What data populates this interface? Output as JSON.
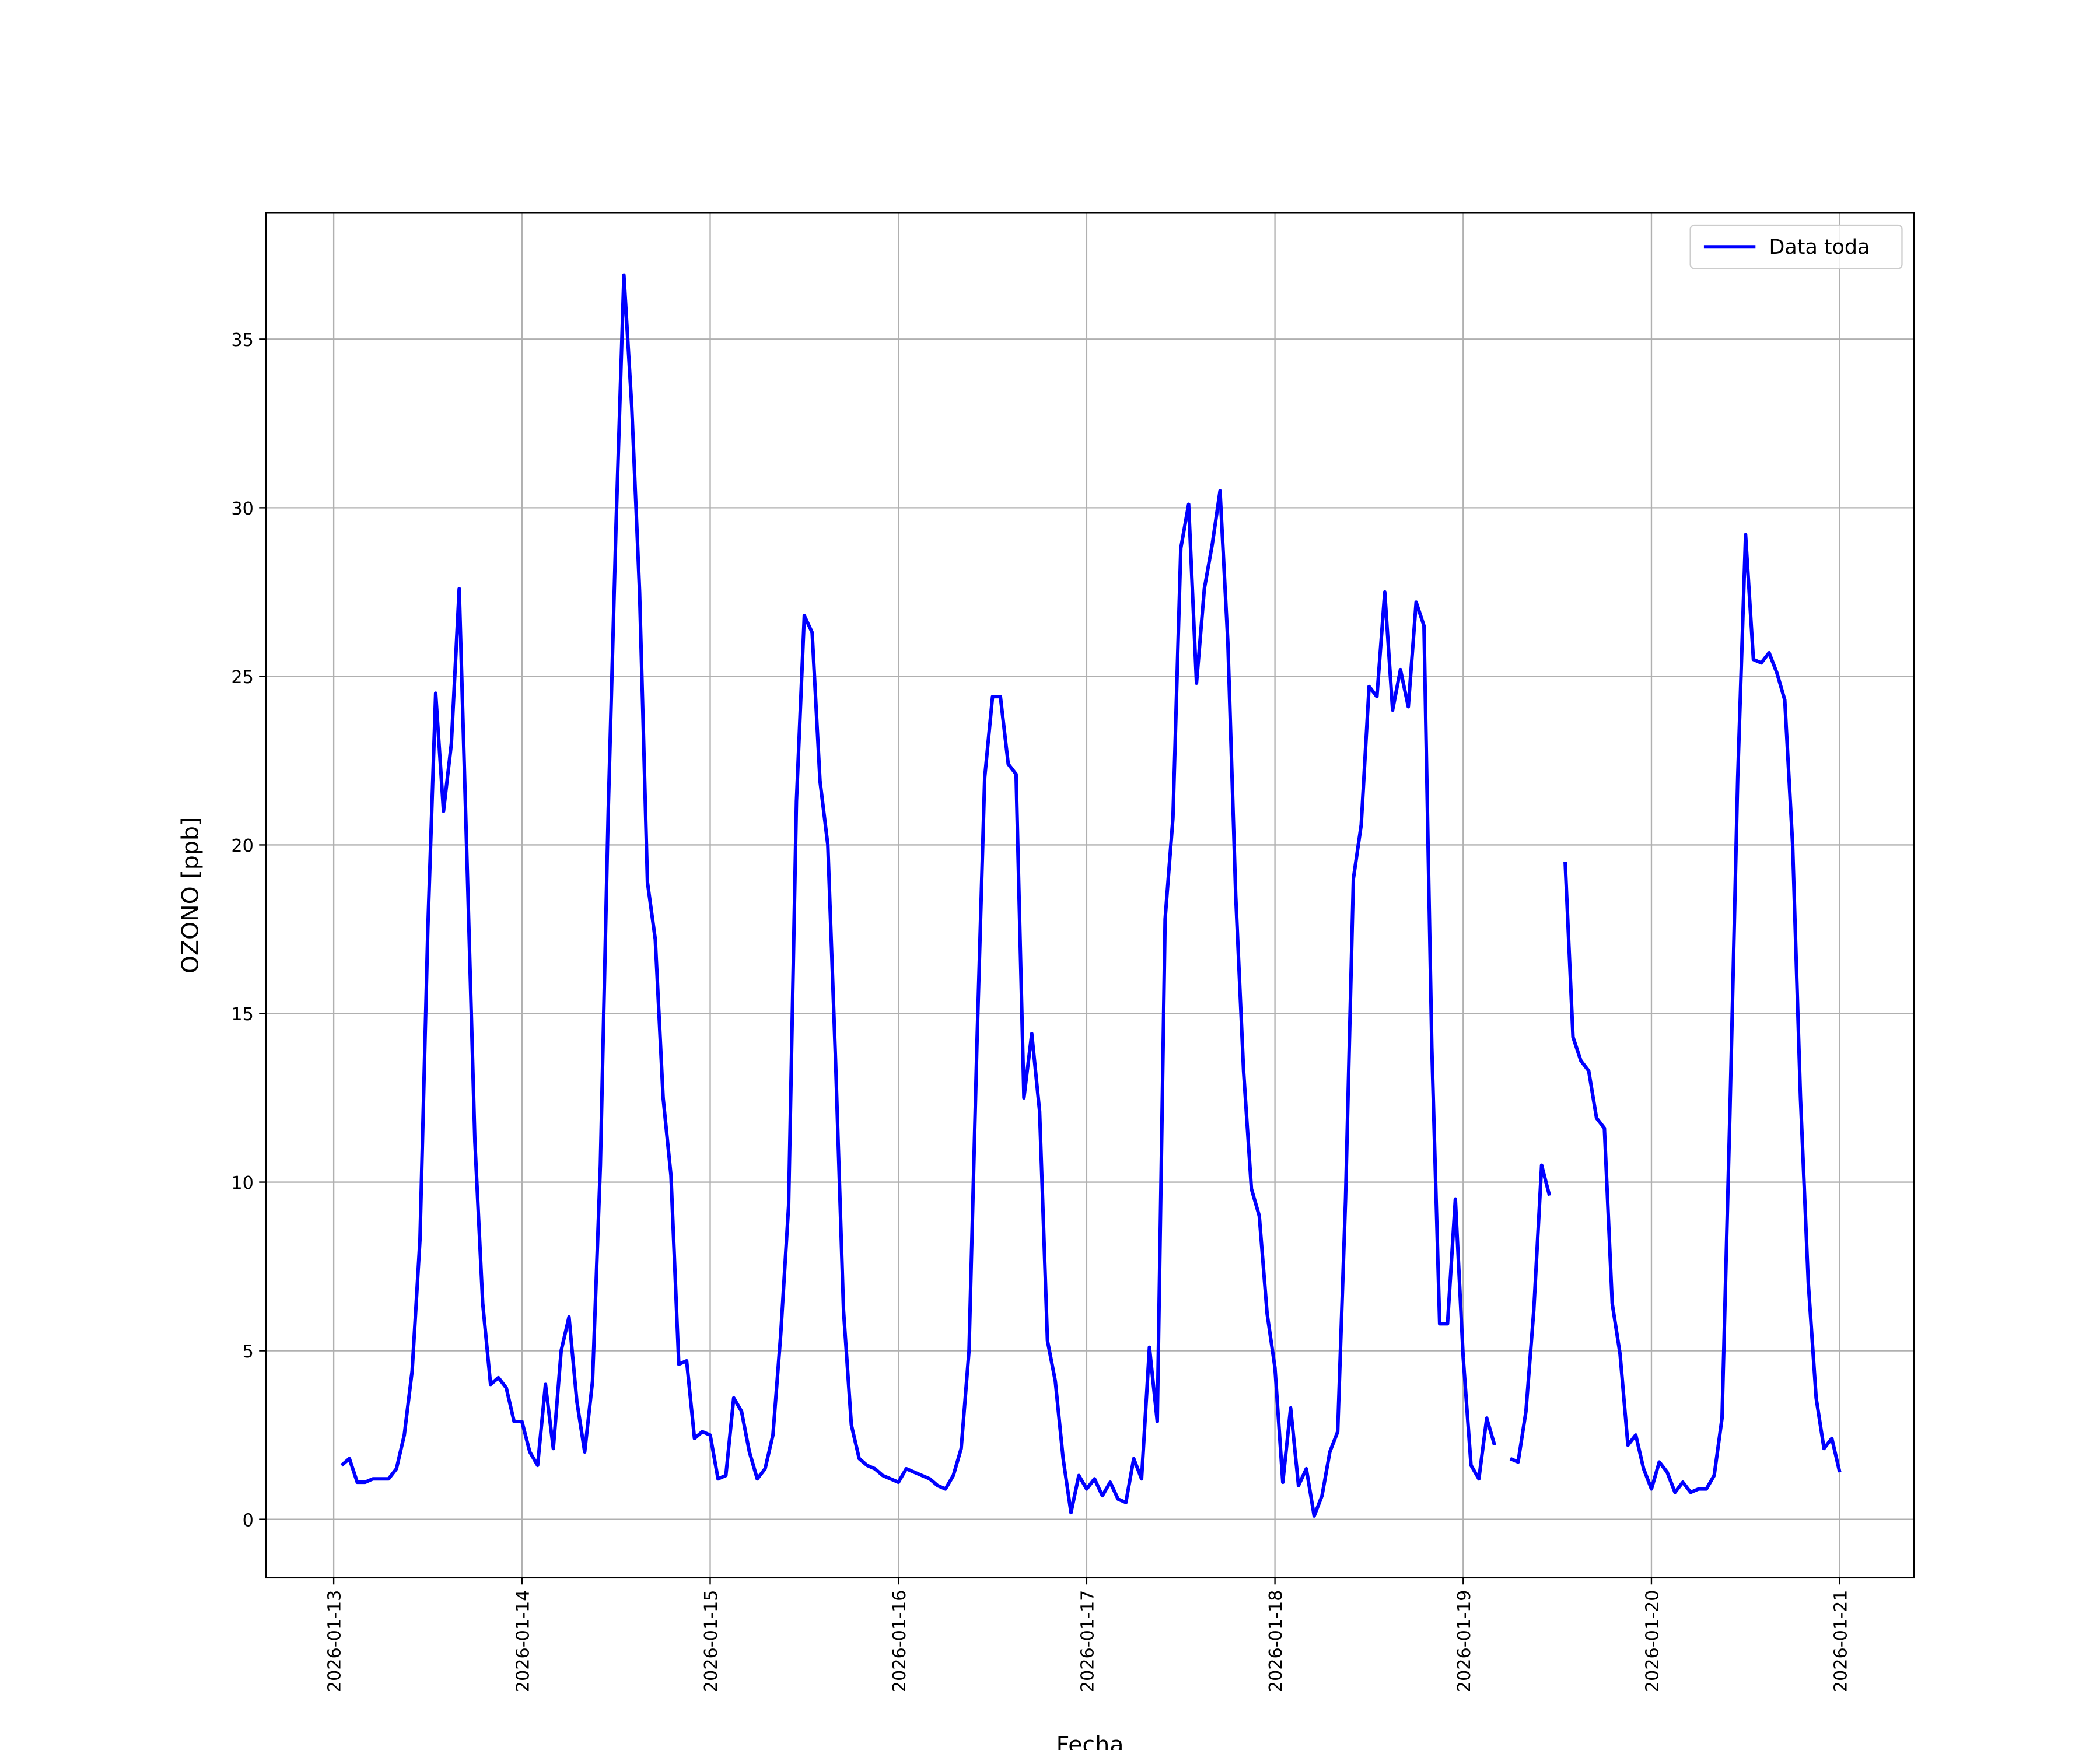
{
  "chart_data": {
    "type": "line",
    "xlabel": "Fecha",
    "ylabel": "OZONO [ppb]",
    "x": [
      "2026-01-13 01:00",
      "2026-01-13 02:00",
      "2026-01-13 03:00",
      "2026-01-13 04:00",
      "2026-01-13 05:00",
      "2026-01-13 06:00",
      "2026-01-13 07:00",
      "2026-01-13 08:00",
      "2026-01-13 09:00",
      "2026-01-13 10:00",
      "2026-01-13 11:00",
      "2026-01-13 12:00",
      "2026-01-13 13:00",
      "2026-01-13 14:00",
      "2026-01-13 15:00",
      "2026-01-13 16:00",
      "2026-01-13 17:00",
      "2026-01-13 18:00",
      "2026-01-13 19:00",
      "2026-01-13 20:00",
      "2026-01-13 21:00",
      "2026-01-13 22:00",
      "2026-01-13 23:00",
      "2026-01-14 00:00",
      "2026-01-14 01:00",
      "2026-01-14 02:00",
      "2026-01-14 03:00",
      "2026-01-14 04:00",
      "2026-01-14 05:00",
      "2026-01-14 06:00",
      "2026-01-14 07:00",
      "2026-01-14 08:00",
      "2026-01-14 09:00",
      "2026-01-14 10:00",
      "2026-01-14 11:00",
      "2026-01-14 12:00",
      "2026-01-14 13:00",
      "2026-01-14 14:00",
      "2026-01-14 15:00",
      "2026-01-14 16:00",
      "2026-01-14 17:00",
      "2026-01-14 18:00",
      "2026-01-14 19:00",
      "2026-01-14 20:00",
      "2026-01-14 21:00",
      "2026-01-14 22:00",
      "2026-01-14 23:00",
      "2026-01-15 00:00",
      "2026-01-15 01:00",
      "2026-01-15 02:00",
      "2026-01-15 03:00",
      "2026-01-15 04:00",
      "2026-01-15 05:00",
      "2026-01-15 06:00",
      "2026-01-15 07:00",
      "2026-01-15 08:00",
      "2026-01-15 09:00",
      "2026-01-15 10:00",
      "2026-01-15 11:00",
      "2026-01-15 12:00",
      "2026-01-15 13:00",
      "2026-01-15 14:00",
      "2026-01-15 15:00",
      "2026-01-15 16:00",
      "2026-01-15 17:00",
      "2026-01-15 18:00",
      "2026-01-15 19:00",
      "2026-01-15 20:00",
      "2026-01-15 21:00",
      "2026-01-15 22:00",
      "2026-01-15 23:00",
      "2026-01-16 00:00",
      "2026-01-16 01:00",
      "2026-01-16 02:00",
      "2026-01-16 03:00",
      "2026-01-16 04:00",
      "2026-01-16 05:00",
      "2026-01-16 06:00",
      "2026-01-16 07:00",
      "2026-01-16 08:00",
      "2026-01-16 09:00",
      "2026-01-16 10:00",
      "2026-01-16 11:00",
      "2026-01-16 12:00",
      "2026-01-16 13:00",
      "2026-01-16 14:00",
      "2026-01-16 15:00",
      "2026-01-16 16:00",
      "2026-01-16 17:00",
      "2026-01-16 18:00",
      "2026-01-16 19:00",
      "2026-01-16 20:00",
      "2026-01-16 21:00",
      "2026-01-16 22:00",
      "2026-01-16 23:00",
      "2026-01-17 00:00",
      "2026-01-17 01:00",
      "2026-01-17 02:00",
      "2026-01-17 03:00",
      "2026-01-17 04:00",
      "2026-01-17 05:00",
      "2026-01-17 06:00",
      "2026-01-17 07:00",
      "2026-01-17 08:00",
      "2026-01-17 09:00",
      "2026-01-17 10:00",
      "2026-01-17 11:00",
      "2026-01-17 12:00",
      "2026-01-17 13:00",
      "2026-01-17 14:00",
      "2026-01-17 15:00",
      "2026-01-17 16:00",
      "2026-01-17 17:00",
      "2026-01-17 18:00",
      "2026-01-17 19:00",
      "2026-01-17 20:00",
      "2026-01-17 21:00",
      "2026-01-17 22:00",
      "2026-01-17 23:00",
      "2026-01-18 00:00",
      "2026-01-18 01:00",
      "2026-01-18 02:00",
      "2026-01-18 03:00",
      "2026-01-18 04:00",
      "2026-01-18 05:00",
      "2026-01-18 06:00",
      "2026-01-18 07:00",
      "2026-01-18 08:00",
      "2026-01-18 09:00",
      "2026-01-18 10:00",
      "2026-01-18 11:00",
      "2026-01-18 12:00",
      "2026-01-18 13:00",
      "2026-01-18 14:00",
      "2026-01-18 15:00",
      "2026-01-18 16:00",
      "2026-01-18 17:00",
      "2026-01-18 18:00",
      "2026-01-18 19:00",
      "2026-01-18 20:00",
      "2026-01-18 21:00",
      "2026-01-18 22:00",
      "2026-01-18 23:00",
      "2026-01-19 00:00",
      "2026-01-19 01:00",
      "2026-01-19 02:00",
      "2026-01-19 03:00",
      "2026-01-19 04:00",
      "2026-01-19 05:00",
      "2026-01-19 06:00",
      "2026-01-19 07:00",
      "2026-01-19 08:00",
      "2026-01-19 09:00",
      "2026-01-19 10:00",
      "2026-01-19 11:00",
      "2026-01-19 12:00",
      "2026-01-19 13:00",
      "2026-01-19 14:00",
      "2026-01-19 15:00",
      "2026-01-19 16:00",
      "2026-01-19 17:00",
      "2026-01-19 18:00",
      "2026-01-19 19:00",
      "2026-01-19 20:00",
      "2026-01-19 21:00",
      "2026-01-19 22:00",
      "2026-01-19 23:00",
      "2026-01-20 00:00",
      "2026-01-20 01:00",
      "2026-01-20 02:00",
      "2026-01-20 03:00",
      "2026-01-20 04:00",
      "2026-01-20 05:00",
      "2026-01-20 06:00",
      "2026-01-20 07:00",
      "2026-01-20 08:00",
      "2026-01-20 09:00",
      "2026-01-20 10:00",
      "2026-01-20 11:00",
      "2026-01-20 12:00",
      "2026-01-20 13:00",
      "2026-01-20 14:00",
      "2026-01-20 15:00",
      "2026-01-20 16:00",
      "2026-01-20 17:00",
      "2026-01-20 18:00",
      "2026-01-20 19:00",
      "2026-01-20 20:00",
      "2026-01-20 21:00",
      "2026-01-20 22:00",
      "2026-01-20 23:00",
      "2026-01-21 00:00"
    ],
    "series": [
      {
        "name": "Data toda",
        "color": "#0000ff",
        "values": [
          1.6,
          1.8,
          1.1,
          1.1,
          1.2,
          1.2,
          1.2,
          1.5,
          2.5,
          4.4,
          8.3,
          17.5,
          24.5,
          21.0,
          23.0,
          27.6,
          19.5,
          11.2,
          6.4,
          4.0,
          4.2,
          3.9,
          2.9,
          2.9,
          2.0,
          1.6,
          4.0,
          2.1,
          5.0,
          6.0,
          3.5,
          2.0,
          4.1,
          10.5,
          21.0,
          29.5,
          36.9,
          33.0,
          27.5,
          18.9,
          17.2,
          12.5,
          10.2,
          4.6,
          4.7,
          2.4,
          2.6,
          2.5,
          1.2,
          1.3,
          3.6,
          3.2,
          2.0,
          1.2,
          1.5,
          2.5,
          5.5,
          9.3,
          21.3,
          26.8,
          26.3,
          21.9,
          20.0,
          13.5,
          6.2,
          2.8,
          1.8,
          1.6,
          1.5,
          1.3,
          1.2,
          1.1,
          1.5,
          1.4,
          1.3,
          1.2,
          1.0,
          0.9,
          1.3,
          2.1,
          5.0,
          14.0,
          22.0,
          24.4,
          24.4,
          22.4,
          22.1,
          12.5,
          14.4,
          12.1,
          5.3,
          4.1,
          1.8,
          0.2,
          1.3,
          0.9,
          1.2,
          0.7,
          1.1,
          0.6,
          0.5,
          1.8,
          1.2,
          5.1,
          2.9,
          17.8,
          20.8,
          28.8,
          30.1,
          24.8,
          27.6,
          28.9,
          30.5,
          26.0,
          18.5,
          13.3,
          9.8,
          9.0,
          6.1,
          4.5,
          1.1,
          3.3,
          1.0,
          1.5,
          0.1,
          0.7,
          2.0,
          2.6,
          9.5,
          19.0,
          20.6,
          24.7,
          24.4,
          27.5,
          24.0,
          25.2,
          24.1,
          27.2,
          26.5,
          14.0,
          5.8,
          5.8,
          9.5,
          4.8,
          1.6,
          1.2,
          3.0,
          2.2,
          null,
          1.8,
          1.7,
          3.2,
          6.2,
          10.5,
          9.6,
          null,
          19.5,
          14.3,
          13.6,
          13.3,
          11.9,
          11.6,
          6.4,
          4.9,
          2.2,
          2.5,
          1.5,
          0.9,
          1.7,
          1.4,
          0.8,
          1.1,
          0.8,
          0.9,
          0.9,
          1.3,
          3.0,
          12.0,
          22.0,
          29.2,
          25.5,
          25.4,
          25.7,
          25.1,
          24.3,
          20.0,
          12.5,
          7.0,
          3.6,
          2.1,
          2.4,
          1.4
        ]
      }
    ],
    "xlim": [
      "2026-01-12 15:21",
      "2026-01-21 09:30"
    ],
    "xticks": [
      "2026-01-13",
      "2026-01-14",
      "2026-01-15",
      "2026-01-16",
      "2026-01-17",
      "2026-01-18",
      "2026-01-19",
      "2026-01-20",
      "2026-01-21"
    ],
    "ylim": [
      -1.73,
      38.74
    ],
    "yticks": [
      0,
      5,
      10,
      15,
      20,
      25,
      30,
      35
    ],
    "grid": true,
    "legend": "upper right"
  }
}
